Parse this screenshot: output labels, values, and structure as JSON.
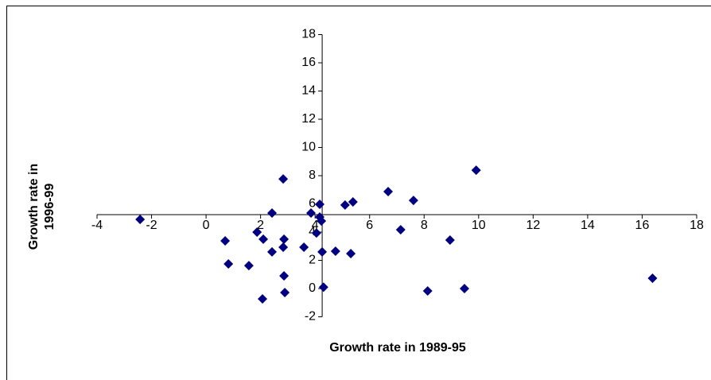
{
  "chart_data": {
    "type": "scatter",
    "xlabel": "Growth rate in 1989-95",
    "ylabel": "Growth rate in 1996-99",
    "x": [
      -2.42,
      0.7,
      0.82,
      1.57,
      1.87,
      2.1,
      2.07,
      2.42,
      2.42,
      2.83,
      2.86,
      2.83,
      2.86,
      2.89,
      3.59,
      3.85,
      4.05,
      4.17,
      4.17,
      4.23,
      4.26,
      4.31,
      4.75,
      5.1,
      5.31,
      5.39,
      6.68,
      7.14,
      7.61,
      8.13,
      8.95,
      9.48,
      9.91,
      16.38
    ],
    "values": [
      4.9,
      3.38,
      1.75,
      1.63,
      4.0,
      3.5,
      -0.73,
      5.35,
      2.6,
      7.77,
      3.5,
      2.93,
      0.9,
      -0.28,
      2.93,
      5.35,
      3.94,
      5.97,
      5.07,
      4.79,
      2.6,
      0.1,
      2.65,
      5.92,
      2.48,
      6.14,
      6.87,
      4.17,
      6.25,
      -0.17,
      3.44,
      0.0,
      8.39,
      0.73
    ],
    "color": "#000080",
    "xlim": [
      -4,
      18
    ],
    "xticks": [
      -4,
      -2,
      0,
      2,
      4,
      6,
      8,
      10,
      12,
      14,
      16,
      18
    ],
    "ylim": [
      -2,
      18
    ],
    "yticks": [
      -2,
      0,
      2,
      4,
      6,
      8,
      10,
      12,
      14,
      16,
      18
    ],
    "axis_cross": [
      4.26,
      5.24
    ]
  }
}
